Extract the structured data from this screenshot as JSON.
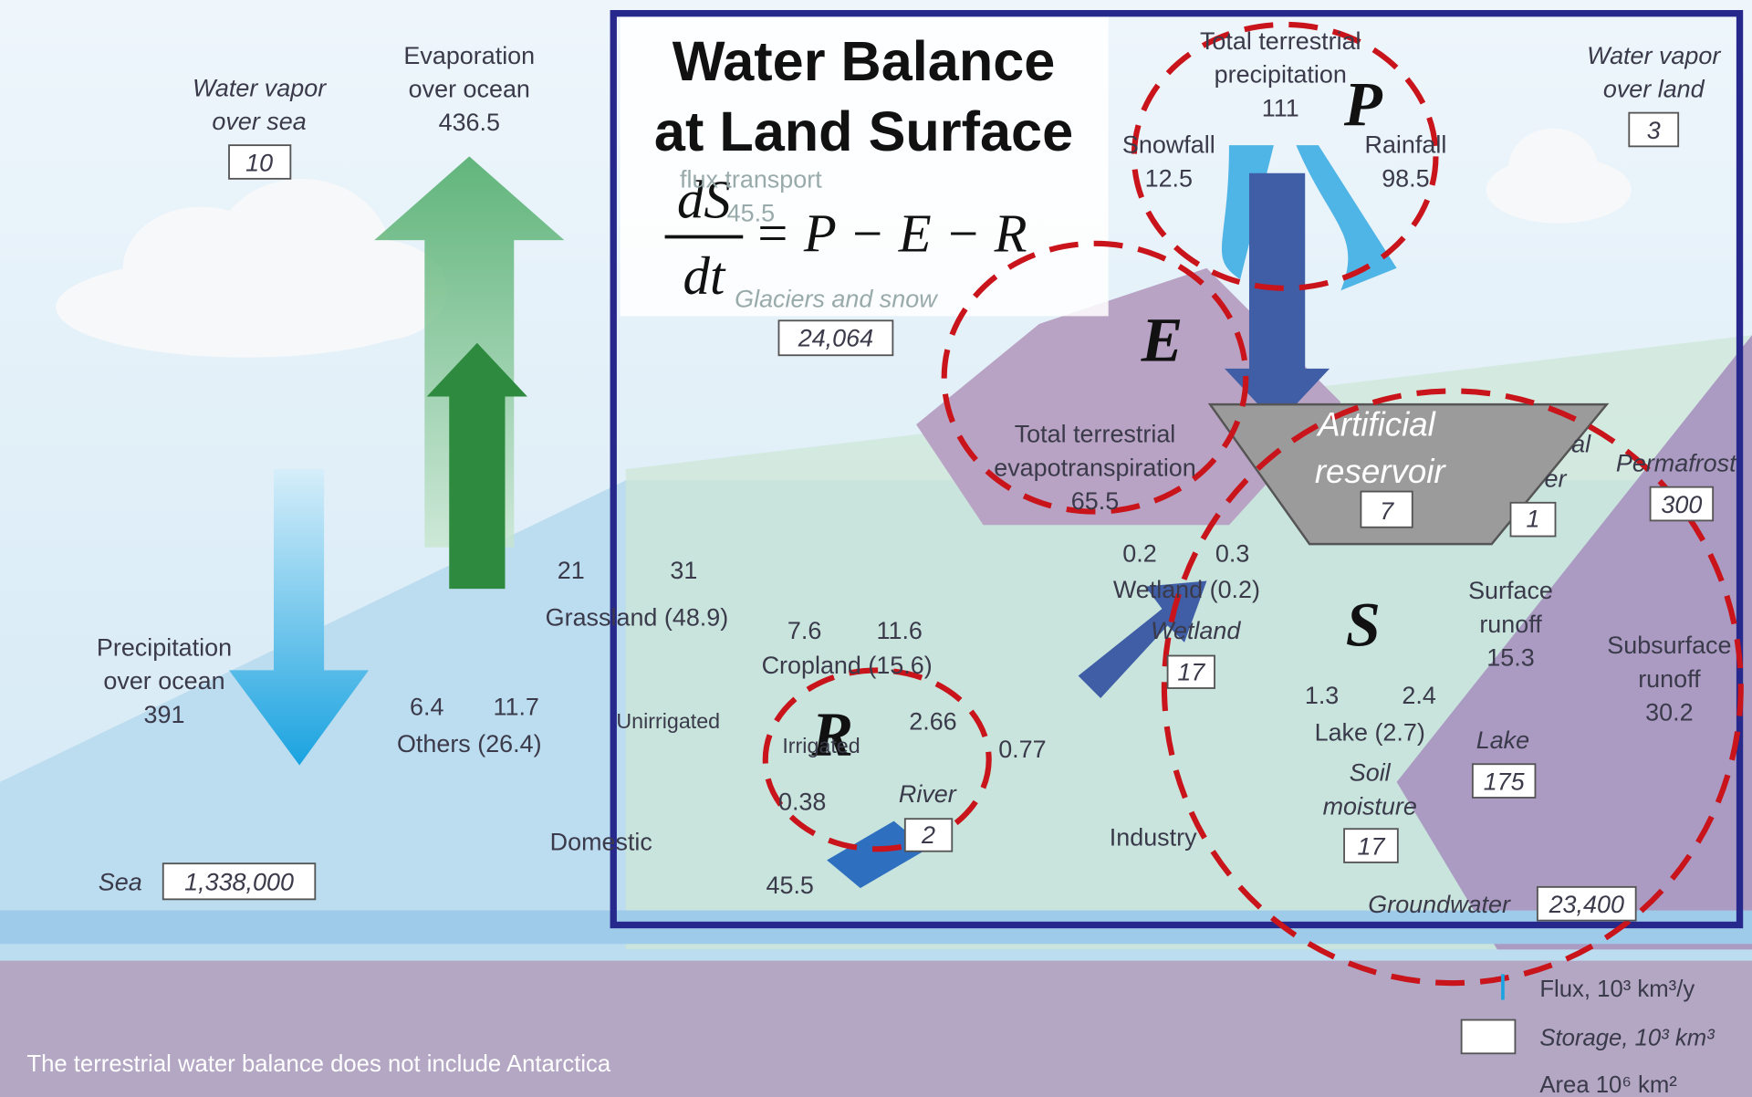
{
  "title": {
    "lines": [
      "Water Balance",
      "at Land Surface"
    ]
  },
  "equation": {
    "numerator": "dS",
    "denominator": "dt",
    "rhs": "= P − E − R"
  },
  "circle_labels": {
    "p": "P",
    "e": "E",
    "r": "R",
    "s": "S"
  },
  "ocean": {
    "vapor_label": [
      "Water vapor",
      "over sea"
    ],
    "vapor_storage": "10",
    "evaporation_label": [
      "Evaporation",
      "over ocean"
    ],
    "evaporation_value": "436.5",
    "precipitation_label": [
      "Precipitation",
      "over ocean"
    ],
    "precipitation_value": "391",
    "sea_label": "Sea",
    "sea_storage": "1,338,000"
  },
  "land": {
    "total_precip_label": [
      "Total terrestrial",
      "precipitation"
    ],
    "total_precip_value": "111",
    "snowfall_label": "Snowfall",
    "snowfall_value": "12.5",
    "rainfall_label": "Rainfall",
    "rainfall_value": "98.5",
    "vapor_land_label": [
      "Water vapor",
      "over land"
    ],
    "vapor_land_storage": "3",
    "flux_transport_label": "flux transport",
    "flux_transport_value": "45.5",
    "glaciers_label": "Glaciers and snow",
    "glaciers_storage": "24,064",
    "et_label": [
      "Total terrestrial",
      "evapotranspiration"
    ],
    "et_value": "65.5",
    "reservoir_label": [
      "Artificial",
      "reservoir"
    ],
    "reservoir_storage": "7",
    "river_water_label": [
      "al",
      "er"
    ],
    "river_water_storage": "1",
    "permafrost_label": "Permafrost",
    "permafrost_storage": "300",
    "surface_runoff_label": [
      "Surface",
      "runoff"
    ],
    "surface_runoff_value": "15.3",
    "subsurface_runoff_label": [
      "Subsurface",
      "runoff"
    ],
    "subsurface_runoff_value": "30.2",
    "wetland_up": "0.2",
    "wetland_down": "0.3",
    "wetland_area": "Wetland (0.2)",
    "wetland_label": "Wetland",
    "wetland_storage": "17",
    "lake_up": "1.3",
    "lake_down": "2.4",
    "lake_area": "Lake (2.7)",
    "lake_label": "Lake",
    "lake_storage": "175",
    "soil_label": [
      "Soil",
      "moisture"
    ],
    "soil_storage": "17",
    "groundwater_label": "Groundwater",
    "groundwater_storage": "23,400",
    "grass_up": "21",
    "grass_down": "31",
    "grass_area": "Grassland (48.9)",
    "crop_up": "7.6",
    "crop_down": "11.6",
    "crop_area": "Cropland (15.6)",
    "others_up": "6.4",
    "others_down": "11.7",
    "others_area": "Others (26.4)",
    "unirrigated": "Unirrigated",
    "irrigated": "Irrigated",
    "flow_a": "2.66",
    "flow_b": "0.77",
    "flow_c": "0.38",
    "river_label": "River",
    "river_storage": "2",
    "river_out": "45.5",
    "domestic": "Domestic",
    "industry": "Industry"
  },
  "legend": {
    "flux": "Flux, 10³ km³/y",
    "storage": "Storage, 10³ km³",
    "area": "Area 10⁶ km²"
  },
  "footnote": "The terrestrial water balance does not include Antarctica"
}
